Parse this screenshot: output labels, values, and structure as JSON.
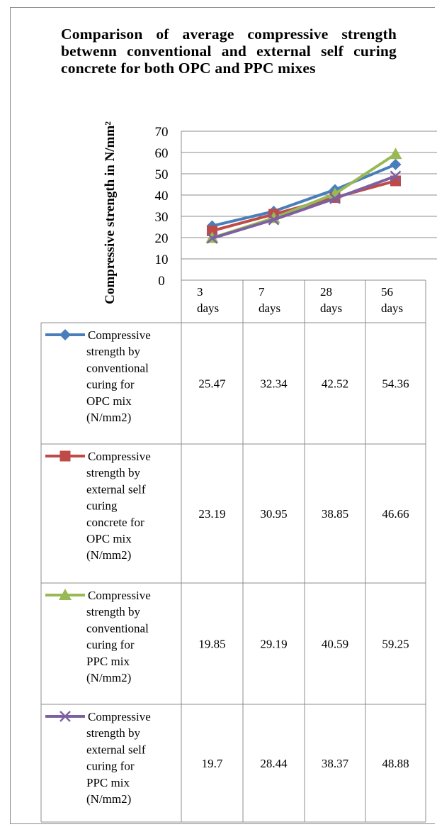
{
  "chart_data": {
    "type": "line",
    "title": "Comparison of average compressive strength betwenn conventional and external self curing concrete for both OPC and PPC mixes",
    "ylabel": "Compressive strength in N/mm²",
    "xlabel": "",
    "ylim": [
      0,
      70
    ],
    "yticks": [
      0,
      10,
      20,
      30,
      40,
      50,
      60,
      70
    ],
    "grid": true,
    "legend": "data-table",
    "categories": [
      [
        "3",
        "days"
      ],
      [
        "7",
        "days"
      ],
      [
        "28",
        "days"
      ],
      [
        "56",
        "days"
      ]
    ],
    "series": [
      {
        "name_lines": [
          "Compressive",
          "strength by",
          "conventional",
          "curing for",
          "OPC mix",
          "(N/mm2)"
        ],
        "values": [
          25.47,
          32.34,
          42.52,
          54.36
        ],
        "value_labels": [
          "25.47",
          "32.34",
          "42.52",
          "54.36"
        ],
        "color": "#4a7ebb",
        "marker": "diamond"
      },
      {
        "name_lines": [
          "Compressive",
          "strength by",
          "external self",
          "curing",
          "concrete for",
          "OPC mix",
          "(N/mm2)"
        ],
        "values": [
          23.19,
          30.95,
          38.85,
          46.66
        ],
        "value_labels": [
          "23.19",
          "30.95",
          "38.85",
          "46.66"
        ],
        "color": "#be4b48",
        "marker": "square"
      },
      {
        "name_lines": [
          "Compressive",
          "strength by",
          "conventional",
          "curing for",
          "PPC mix",
          "(N/mm2)"
        ],
        "values": [
          19.85,
          29.19,
          40.59,
          59.25
        ],
        "value_labels": [
          "19.85",
          "29.19",
          "40.59",
          "59.25"
        ],
        "color": "#98b954",
        "marker": "triangle"
      },
      {
        "name_lines": [
          "Compressive",
          "strength by",
          "external self",
          "curing for",
          "PPC mix",
          "(N/mm2)"
        ],
        "values": [
          19.7,
          28.44,
          38.37,
          48.88
        ],
        "value_labels": [
          "19.7",
          "28.44",
          "38.37",
          "48.88"
        ],
        "color": "#7d60a0",
        "marker": "x"
      }
    ]
  }
}
